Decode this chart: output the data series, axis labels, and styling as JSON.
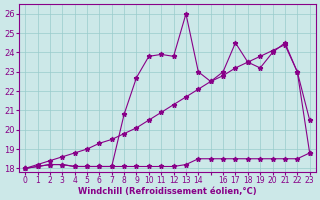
{
  "xlabel": "Windchill (Refroidissement éolien,°C)",
  "background_color": "#cce8e8",
  "grid_color": "#99cccc",
  "line_color": "#880088",
  "x_hours": [
    0,
    1,
    2,
    3,
    4,
    5,
    6,
    7,
    8,
    9,
    10,
    11,
    12,
    13,
    14,
    15,
    16,
    17,
    18,
    19,
    20,
    21,
    22,
    23
  ],
  "series1": [
    18.0,
    18.1,
    18.2,
    18.2,
    18.1,
    18.1,
    18.1,
    18.1,
    18.1,
    18.1,
    18.1,
    18.1,
    18.1,
    18.2,
    18.5,
    18.5,
    18.5,
    18.5,
    18.5,
    18.5,
    18.5,
    18.5,
    18.5,
    18.8
  ],
  "series2": [
    18.0,
    18.2,
    18.4,
    18.6,
    18.8,
    19.0,
    19.3,
    19.5,
    19.8,
    20.1,
    20.5,
    20.9,
    21.3,
    21.7,
    22.1,
    22.5,
    22.8,
    23.2,
    23.5,
    23.8,
    24.1,
    24.4,
    23.0,
    18.8
  ],
  "series3": [
    18.0,
    18.1,
    18.2,
    18.2,
    18.1,
    18.1,
    18.1,
    18.1,
    20.8,
    22.7,
    23.8,
    23.9,
    23.8,
    26.0,
    23.0,
    22.5,
    23.0,
    24.5,
    23.5,
    23.2,
    24.0,
    24.5,
    23.0,
    20.5
  ],
  "ylim": [
    17.8,
    26.5
  ],
  "yticks": [
    18,
    19,
    20,
    21,
    22,
    23,
    24,
    25,
    26
  ],
  "xlim": [
    -0.5,
    23.5
  ],
  "xtick_positions": [
    0,
    1,
    2,
    3,
    4,
    5,
    6,
    7,
    8,
    9,
    10,
    11,
    12,
    13,
    14,
    15,
    16,
    17,
    18,
    19,
    20,
    21,
    22,
    23
  ],
  "xtick_labels": [
    "0",
    "1",
    "2",
    "3",
    "4",
    "5",
    "6",
    "7",
    "8",
    "9",
    "10",
    "11",
    "12",
    "13",
    "14",
    "",
    "16",
    "17",
    "18",
    "19",
    "20",
    "21",
    "22",
    "23"
  ],
  "figsize": [
    3.2,
    2.0
  ],
  "dpi": 100
}
